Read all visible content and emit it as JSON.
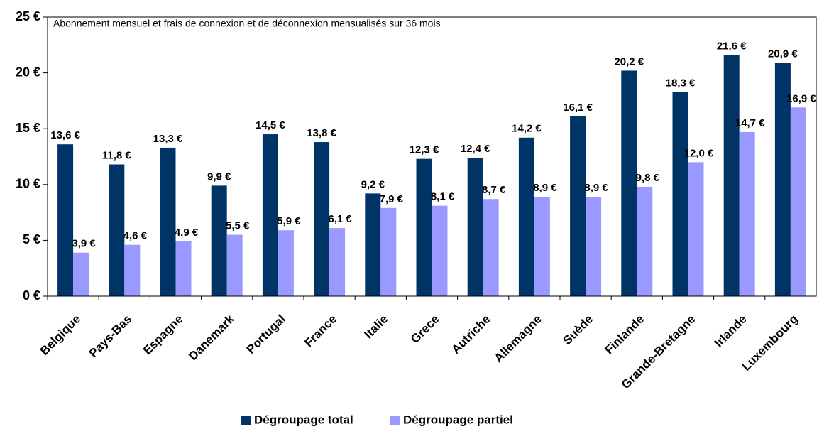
{
  "chart_data": {
    "type": "bar",
    "annotation": "Abonnement mensuel et frais de connexion et de déconnexion mensualisés sur 36 mois",
    "categories": [
      "Belgique",
      "Pays-Bas",
      "Espagne",
      "Danemark",
      "Portugal",
      "France",
      "Italie",
      "Grece",
      "Autriche",
      "Allemagne",
      "Suède",
      "Finlande",
      "Grande-Bretagne",
      "Irlande",
      "Luxembourg"
    ],
    "series": [
      {
        "name": "Dégroupage total",
        "color": "#003366",
        "values": [
          13.6,
          11.8,
          13.3,
          9.9,
          14.5,
          13.8,
          9.2,
          12.3,
          12.4,
          14.2,
          16.1,
          20.2,
          18.3,
          21.6,
          20.9
        ],
        "value_labels": [
          "13,6 €",
          "11,8 €",
          "13,3 €",
          "9,9 €",
          "14,5 €",
          "13,8 €",
          "9,2 €",
          "12,3 €",
          "12,4 €",
          "14,2 €",
          "16,1 €",
          "20,2 €",
          "18,3 €",
          "21,6 €",
          "20,9 €"
        ]
      },
      {
        "name": "Dégroupage partiel",
        "color": "#9999ff",
        "values": [
          3.9,
          4.6,
          4.9,
          5.5,
          5.9,
          6.1,
          7.9,
          8.1,
          8.7,
          8.9,
          8.9,
          9.8,
          12.0,
          14.7,
          16.9
        ],
        "value_labels": [
          "3,9 €",
          "4,6 €",
          "4,9 €",
          "5,5 €",
          "5,9 €",
          "6,1 €",
          "7,9 €",
          "8,1 €",
          "8,7 €",
          "8,9 €",
          "8,9 €",
          "9,8 €",
          "12,0 €",
          "14,7 €",
          "16,9 €"
        ]
      }
    ],
    "ylim": [
      0,
      25
    ],
    "yticks": [
      {
        "value": 0,
        "label": "0 €"
      },
      {
        "value": 5,
        "label": "5 €"
      },
      {
        "value": 10,
        "label": "10 €"
      },
      {
        "value": 15,
        "label": "15 €"
      },
      {
        "value": 20,
        "label": "20 €"
      },
      {
        "value": 25,
        "label": "25 €"
      }
    ],
    "legend": "bottom"
  }
}
